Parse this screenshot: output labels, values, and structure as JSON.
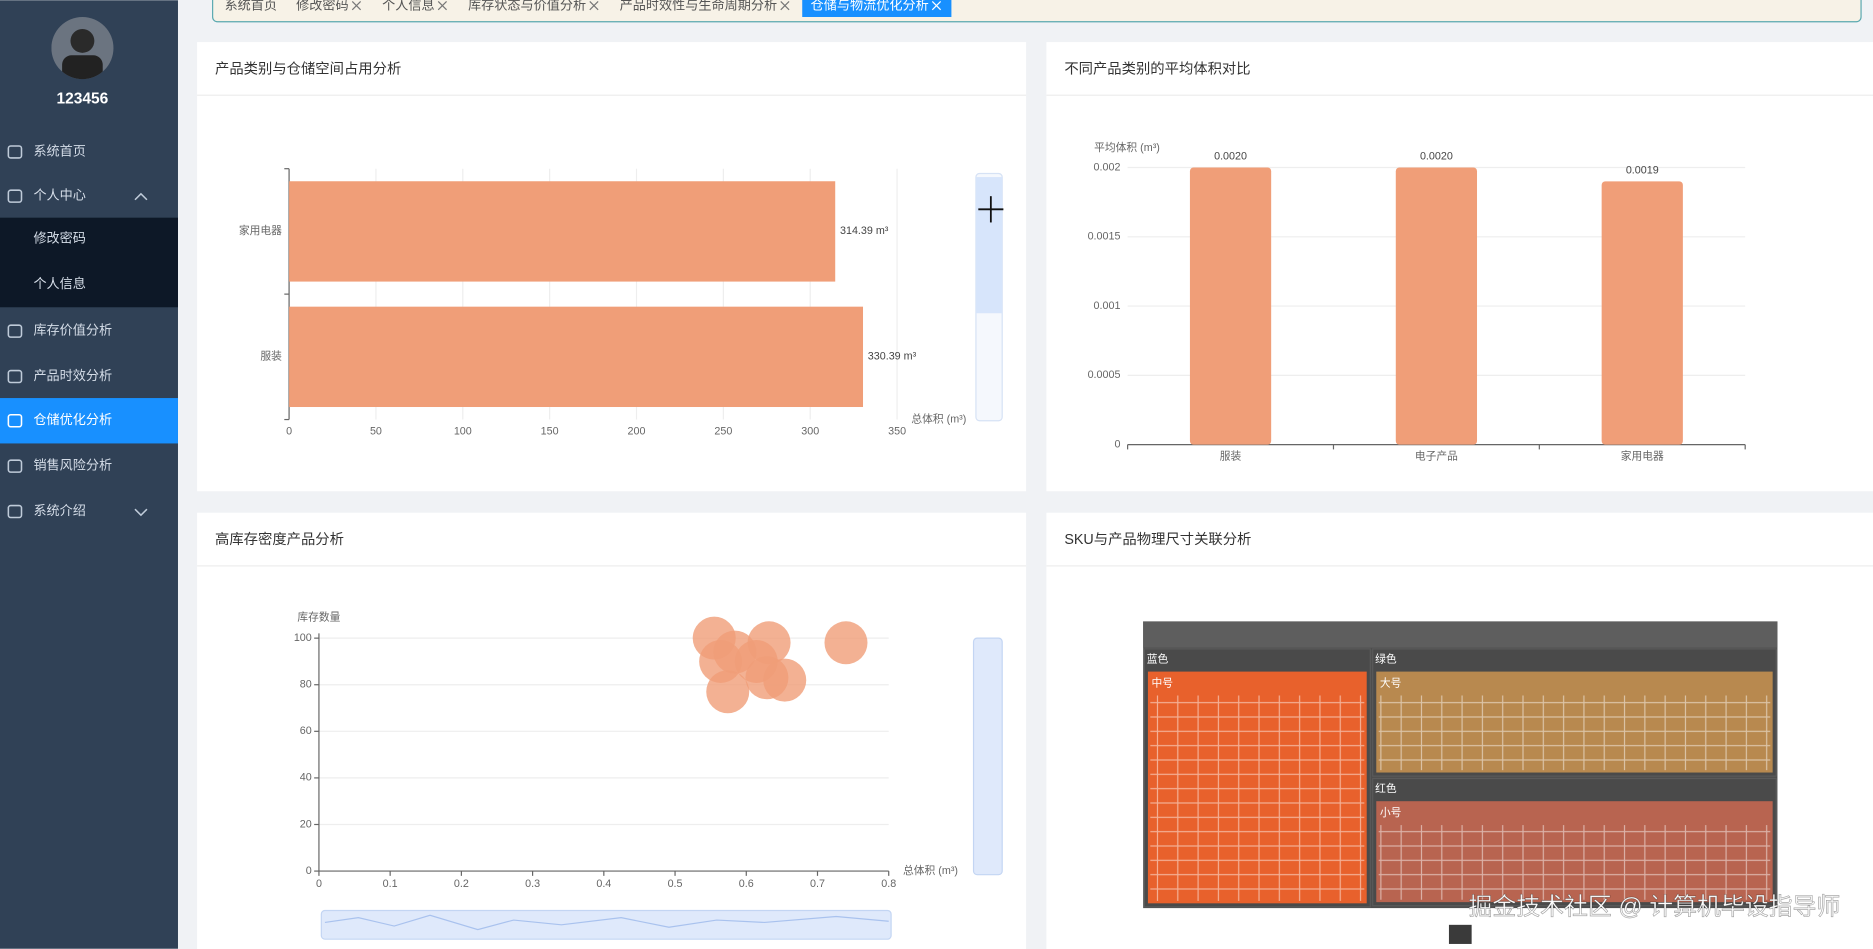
{
  "sidebar": {
    "username": "123456",
    "menu": [
      "系统首页",
      "个人中心",
      "修改密码",
      "个人信息",
      "库存价值分析",
      "产品时效分析",
      "仓储优化分析",
      "销售风险分析",
      "系统介绍"
    ],
    "active_menu": 6
  },
  "tabs": [
    "系统首页",
    "修改密码",
    "个人信息",
    "库存状态与价值分析",
    "产品时效性与生命周期分析",
    "仓储与物流优化分析"
  ],
  "active_tab": 5,
  "chart_data": [
    {
      "type": "hbar",
      "title": "产品类别与仓储空间占用分析",
      "categories": [
        "家用电器",
        "服装"
      ],
      "values": [
        314.39,
        330.39
      ],
      "value_labels": [
        "314.39 m³",
        "330.39 m³"
      ],
      "color": "#f09e78",
      "x_label": "总体积 (m³)",
      "xlim": [
        0,
        350
      ],
      "xticks": [
        0,
        50,
        100,
        150,
        200,
        250,
        300,
        350
      ],
      "grid": true
    },
    {
      "type": "bar",
      "title": "不同产品类别的平均体积对比",
      "categories": [
        "服装",
        "电子产品",
        "家用电器"
      ],
      "values": [
        0.002,
        0.002,
        0.0019
      ],
      "value_labels": [
        "0.0020",
        "0.0020",
        "0.0019"
      ],
      "color": "#f09e78",
      "y_label": "平均体积 (m³)",
      "ylim": [
        0,
        0.002
      ],
      "yticks": [
        0,
        0.0005,
        0.001,
        0.0015,
        0.002
      ],
      "grid": true
    },
    {
      "type": "scatter",
      "title": "高库存密度产品分析",
      "x": [
        0.555,
        0.564,
        0.632,
        0.614,
        0.574,
        0.629,
        0.654,
        0.74,
        0.584
      ],
      "values": [
        100,
        90,
        98,
        90,
        77,
        83,
        82,
        98,
        94
      ],
      "color": "#f09e78",
      "x_label": "总体积 (m³)",
      "y_label": "库存数量",
      "xlim": [
        0,
        0.8
      ],
      "xticks": [
        0,
        0.1,
        0.2,
        0.3,
        0.4,
        0.5,
        0.6,
        0.7,
        0.8
      ],
      "ylim": [
        0,
        100
      ],
      "yticks": [
        0,
        20,
        40,
        60,
        80,
        100
      ],
      "grid": true
    },
    {
      "type": "treemap",
      "title": "SKU与产品物理尺寸关联分析",
      "groups": [
        {
          "name": "蓝色",
          "children": [
            {
              "name": "中号",
              "value": 36,
              "color": "#e8612c"
            }
          ]
        },
        {
          "name": "绿色",
          "children": [
            {
              "name": "大号",
              "value": 32,
              "color": "#b8894f"
            }
          ]
        },
        {
          "name": "红色",
          "children": [
            {
              "name": "小号",
              "value": 32,
              "color": "#b86450"
            }
          ]
        }
      ]
    }
  ],
  "watermark": "掘金技术社区 @ 计算机毕设指导师"
}
